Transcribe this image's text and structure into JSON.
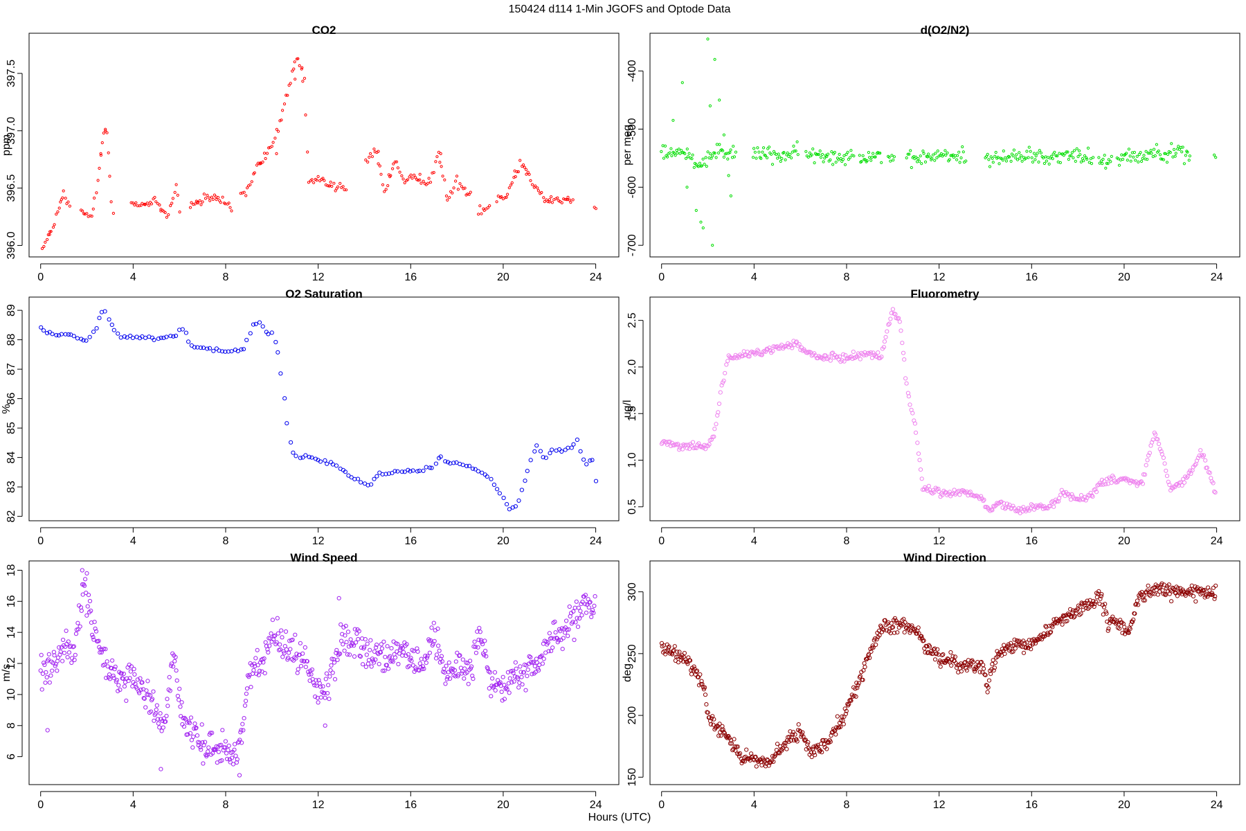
{
  "figure": {
    "title": "150424   d114   1-Min  JGOFS and Optode Data",
    "xlabel": "Hours (UTC)"
  },
  "chart_data": [
    {
      "type": "scatter",
      "title": "CO2",
      "ylabel": "ppm",
      "color": "#ff0000",
      "marker_radius": 1.6,
      "xlim": [
        -0.5,
        25.0
      ],
      "ylim": [
        395.9,
        397.85
      ],
      "xticks": [
        0,
        4,
        8,
        12,
        16,
        20,
        24
      ],
      "yticks": [
        396.0,
        396.5,
        397.0,
        397.5
      ],
      "yticklabels": [
        "396.0",
        "396.5",
        "397.0",
        "397.5"
      ],
      "noise": 0.04,
      "density": 4,
      "gaps": [
        [
          1.3,
          1.7
        ],
        [
          3.2,
          3.9
        ],
        [
          6.0,
          6.4
        ],
        [
          8.3,
          8.6
        ],
        [
          13.2,
          14.0
        ],
        [
          18.6,
          18.9
        ],
        [
          19.4,
          19.7
        ],
        [
          23.0,
          23.9
        ]
      ],
      "x": [
        0,
        0.3,
        0.6,
        1.0,
        1.3,
        1.8,
        2.2,
        2.5,
        2.7,
        2.85,
        3.1,
        3.2,
        3.9,
        4.3,
        5.0,
        5.5,
        5.9,
        6.0,
        6.4,
        7.5,
        8.2,
        8.3,
        8.6,
        9.0,
        9.4,
        9.8,
        10.0,
        10.5,
        10.9,
        11.1,
        11.4,
        11.6,
        12.0,
        13.0,
        13.2,
        14.0,
        14.5,
        14.9,
        15.3,
        15.7,
        16.2,
        16.8,
        17.2,
        17.6,
        18.0,
        18.6,
        18.9,
        19.4,
        19.7,
        20.2,
        20.7,
        21.0,
        21.3,
        21.8,
        22.5,
        23.0,
        23.9,
        24.0
      ],
      "y": [
        395.95,
        396.05,
        396.2,
        396.45,
        396.3,
        396.28,
        396.25,
        396.6,
        396.95,
        397.05,
        396.3,
        396.28,
        396.4,
        396.35,
        396.38,
        396.25,
        396.55,
        396.3,
        396.35,
        396.42,
        396.35,
        396.3,
        396.4,
        396.5,
        396.7,
        396.8,
        396.85,
        397.2,
        397.5,
        397.65,
        397.4,
        396.55,
        396.58,
        396.5,
        396.48,
        396.7,
        396.85,
        396.45,
        396.75,
        396.55,
        396.6,
        396.55,
        396.8,
        396.4,
        396.55,
        396.45,
        396.3,
        396.35,
        396.4,
        396.45,
        396.7,
        396.68,
        396.55,
        396.4,
        396.4,
        396.38,
        396.35,
        396.35
      ],
      "hl_x": [
        0.4,
        0.9,
        2.6,
        2.8,
        4.5,
        5.2,
        6.8,
        7.6,
        9.5,
        10.2,
        11.0,
        11.3,
        12.5,
        14.6,
        15.1,
        16.4,
        17.3,
        20.5,
        21.0,
        22.0,
        22.8
      ],
      "hl_y": [
        396.12,
        396.4,
        396.8,
        397.0,
        396.36,
        396.3,
        396.37,
        396.4,
        396.72,
        396.8,
        397.45,
        397.55,
        396.52,
        396.82,
        396.6,
        396.62,
        396.8,
        396.65,
        396.62,
        396.38,
        396.42
      ]
    },
    {
      "type": "scatter",
      "title": "d(O2/N2)",
      "ylabel": "per meg",
      "color": "#00dd00",
      "marker_radius": 1.6,
      "xlim": [
        -0.5,
        25.0
      ],
      "ylim": [
        -720,
        -335
      ],
      "xticks": [
        0,
        4,
        8,
        12,
        16,
        20,
        24
      ],
      "yticks": [
        -700,
        -600,
        -500,
        -400
      ],
      "yticklabels": [
        "-700",
        "-600",
        "-500",
        "-400"
      ],
      "noise": 12,
      "density": 3,
      "gaps": [
        [
          3.2,
          3.9
        ],
        [
          5.9,
          6.2
        ],
        [
          8.3,
          8.5
        ],
        [
          9.5,
          9.8
        ],
        [
          10.1,
          10.6
        ],
        [
          13.2,
          14.0
        ],
        [
          18.7,
          18.9
        ],
        [
          19.5,
          19.7
        ],
        [
          22.9,
          23.9
        ]
      ],
      "x": [
        0,
        0.8,
        1.2,
        1.6,
        2.0,
        2.4,
        2.8,
        3.2,
        3.9,
        5.0,
        5.9,
        6.2,
        7.5,
        8.3,
        8.5,
        9.5,
        9.8,
        10.1,
        10.6,
        11.5,
        13.2,
        14.0,
        15.0,
        16.0,
        17.0,
        18.0,
        18.7,
        18.9,
        19.5,
        19.7,
        20.5,
        21.5,
        22.4,
        22.9,
        23.9,
        24.0
      ],
      "y": [
        -540,
        -540,
        -545,
        -560,
        -550,
        -530,
        -545,
        -540,
        -540,
        -545,
        -540,
        -545,
        -548,
        -545,
        -545,
        -545,
        -545,
        -555,
        -555,
        -548,
        -545,
        -548,
        -550,
        -545,
        -548,
        -545,
        -550,
        -552,
        -552,
        -548,
        -545,
        -540,
        -540,
        -545,
        -550,
        -548
      ],
      "hl_x": [
        0.5,
        0.9,
        1.5,
        1.8,
        2.0,
        2.1,
        2.3,
        2.5,
        2.7,
        2.9,
        3.0,
        1.1,
        1.7,
        2.2
      ],
      "hl_y": [
        -485,
        -420,
        -640,
        -670,
        -345,
        -460,
        -380,
        -450,
        -510,
        -580,
        -615,
        -600,
        -660,
        -700
      ],
      "outlier_color": "#00dd00"
    },
    {
      "type": "scatter",
      "title": "O2 Saturation",
      "ylabel": "%",
      "color": "#0000ee",
      "marker_radius": 2.6,
      "xlim": [
        -0.5,
        25.0
      ],
      "ylim": [
        81.85,
        89.45
      ],
      "xticks": [
        0,
        4,
        8,
        12,
        16,
        20,
        24
      ],
      "yticks": [
        82,
        83,
        84,
        85,
        86,
        87,
        88,
        89
      ],
      "yticklabels": [
        "82",
        "83",
        "84",
        "85",
        "86",
        "87",
        "88",
        "89"
      ],
      "noise": 0.05,
      "density": 8,
      "gaps": [],
      "x": [
        0,
        0.3,
        0.8,
        1.2,
        1.7,
        2.0,
        2.4,
        2.7,
        3.0,
        3.4,
        3.8,
        4.2,
        5.0,
        5.8,
        6.1,
        6.5,
        7.0,
        7.6,
        8.2,
        8.8,
        9.2,
        9.5,
        9.8,
        10.0,
        10.3,
        10.6,
        10.8,
        11.0,
        11.3,
        12.0,
        12.5,
        13.0,
        13.5,
        14.0,
        14.3,
        14.6,
        14.9,
        15.5,
        16.0,
        16.5,
        17.0,
        17.3,
        17.5,
        18.0,
        18.5,
        19.0,
        19.5,
        20.0,
        20.3,
        20.6,
        21.0,
        21.3,
        21.5,
        21.8,
        22.2,
        22.6,
        23.0,
        23.2,
        23.5,
        23.9,
        24.0
      ],
      "y": [
        88.4,
        88.25,
        88.15,
        88.2,
        88.0,
        87.95,
        88.4,
        89.05,
        88.6,
        88.1,
        88.1,
        88.1,
        88.05,
        88.1,
        88.45,
        87.8,
        87.7,
        87.65,
        87.6,
        87.7,
        88.5,
        88.6,
        88.2,
        88.25,
        87.5,
        85.5,
        84.5,
        84.0,
        84.05,
        83.95,
        83.8,
        83.6,
        83.3,
        83.1,
        83.1,
        83.5,
        83.4,
        83.55,
        83.55,
        83.6,
        83.7,
        84.1,
        83.85,
        83.8,
        83.7,
        83.5,
        83.2,
        82.6,
        82.25,
        82.4,
        83.4,
        84.2,
        84.4,
        83.9,
        84.3,
        84.2,
        84.4,
        84.6,
        83.8,
        83.9,
        83.2
      ],
      "hl_x": [],
      "hl_y": []
    },
    {
      "type": "scatter",
      "title": "Fluorometry",
      "ylabel": "ug/l",
      "color": "#ee82ee",
      "marker_radius": 2.6,
      "xlim": [
        -0.5,
        25.0
      ],
      "ylim": [
        0.35,
        2.75
      ],
      "xticks": [
        0,
        4,
        8,
        12,
        16,
        20,
        24
      ],
      "yticks": [
        0.5,
        1.0,
        1.5,
        2.0,
        2.5
      ],
      "yticklabels": [
        "0.5",
        "1.0",
        "1.5",
        "2.0",
        "2.5"
      ],
      "noise": 0.035,
      "density": 3,
      "gaps": [],
      "x": [
        0,
        1.0,
        2.0,
        2.3,
        2.6,
        2.9,
        3.2,
        4.0,
        5.0,
        5.8,
        6.3,
        7.0,
        8.0,
        9.0,
        9.5,
        9.8,
        10.0,
        10.3,
        10.6,
        11.0,
        11.3,
        12.0,
        13.0,
        13.8,
        14.2,
        14.6,
        15.0,
        15.5,
        16.0,
        16.8,
        17.3,
        17.8,
        18.5,
        19.0,
        19.5,
        20.0,
        20.8,
        21.0,
        21.3,
        21.6,
        22.0,
        22.5,
        23.0,
        23.3,
        23.7,
        24.0
      ],
      "y": [
        1.2,
        1.15,
        1.15,
        1.3,
        1.8,
        2.1,
        2.1,
        2.15,
        2.2,
        2.25,
        2.15,
        2.1,
        2.1,
        2.15,
        2.1,
        2.45,
        2.6,
        2.5,
        1.8,
        1.3,
        0.7,
        0.65,
        0.65,
        0.6,
        0.45,
        0.55,
        0.5,
        0.45,
        0.5,
        0.5,
        0.65,
        0.6,
        0.6,
        0.75,
        0.8,
        0.8,
        0.75,
        1.0,
        1.3,
        1.1,
        0.7,
        0.75,
        0.9,
        1.1,
        0.85,
        0.6
      ],
      "hl_x": [],
      "hl_y": []
    },
    {
      "type": "scatter",
      "title": "Wind Speed",
      "ylabel": "m/s",
      "color": "#a020f0",
      "marker_radius": 2.6,
      "xlim": [
        -0.5,
        25.0
      ],
      "ylim": [
        4.2,
        18.6
      ],
      "xticks": [
        0,
        4,
        8,
        12,
        16,
        20,
        24
      ],
      "yticks": [
        6,
        8,
        10,
        12,
        14,
        16,
        18
      ],
      "yticklabels": [
        "6",
        "8",
        "10",
        "12",
        "14",
        "16",
        "18"
      ],
      "noise": 0.9,
      "density": 2,
      "gaps": [],
      "x": [
        0,
        0.5,
        1.0,
        1.5,
        1.9,
        2.0,
        2.3,
        2.8,
        3.2,
        4.0,
        4.8,
        5.3,
        5.8,
        6.0,
        6.5,
        7.0,
        8.0,
        8.5,
        9.0,
        9.5,
        10.0,
        10.8,
        11.5,
        12.0,
        12.5,
        13.0,
        13.5,
        14.5,
        15.5,
        16.5,
        17.0,
        17.5,
        18.0,
        18.5,
        19.0,
        19.5,
        20.0,
        20.5,
        21.0,
        21.5,
        22.0,
        22.5,
        23.0,
        23.5,
        24.0
      ],
      "y": [
        11.5,
        12.0,
        13.0,
        12.8,
        17.0,
        16.0,
        14.0,
        12.0,
        11.0,
        11.0,
        9.5,
        8.0,
        13.0,
        9.0,
        7.5,
        6.8,
        6.5,
        6.0,
        11.0,
        12.0,
        14.0,
        13.0,
        12.0,
        10.0,
        11.0,
        13.5,
        13.5,
        12.5,
        12.5,
        11.8,
        14.0,
        11.0,
        12.0,
        11.5,
        14.0,
        10.5,
        10.5,
        11.0,
        11.5,
        12.0,
        13.5,
        14.0,
        14.5,
        15.5,
        15.5
      ],
      "hl_x": [
        0.3,
        1.8,
        2.0,
        5.2,
        8.6,
        12.3,
        12.9
      ],
      "hl_y": [
        7.7,
        18.0,
        17.8,
        5.2,
        4.8,
        8.0,
        16.2
      ],
      "outlier_color": "#a020f0"
    },
    {
      "type": "scatter",
      "title": "Wind Direction",
      "ylabel": "deg",
      "color": "#8b0000",
      "marker_radius": 2.6,
      "xlim": [
        -0.5,
        25.0
      ],
      "ylim": [
        144,
        325
      ],
      "xticks": [
        0,
        4,
        8,
        12,
        16,
        20,
        24
      ],
      "yticks": [
        150,
        200,
        250,
        300
      ],
      "yticklabels": [
        "150",
        "200",
        "250",
        "300"
      ],
      "noise": 5,
      "density": 2,
      "gaps": [],
      "x": [
        0,
        0.5,
        1.0,
        1.5,
        1.9,
        2.0,
        2.5,
        3.0,
        3.5,
        4.0,
        4.5,
        5.0,
        5.5,
        6.0,
        6.5,
        7.0,
        7.5,
        8.0,
        8.5,
        9.0,
        9.5,
        10.0,
        10.5,
        11.0,
        11.5,
        12.0,
        12.5,
        13.0,
        13.5,
        13.9,
        14.1,
        14.3,
        14.6,
        15.0,
        15.5,
        16.0,
        16.5,
        17.0,
        17.5,
        18.0,
        18.5,
        19.0,
        19.3,
        19.6,
        20.0,
        20.3,
        20.6,
        21.0,
        21.5,
        22.0,
        22.5,
        23.0,
        23.5,
        24.0
      ],
      "y": [
        255,
        250,
        245,
        235,
        220,
        200,
        190,
        180,
        165,
        165,
        160,
        170,
        180,
        185,
        170,
        175,
        190,
        205,
        225,
        250,
        270,
        272,
        272,
        270,
        255,
        245,
        245,
        240,
        240,
        238,
        222,
        240,
        248,
        255,
        255,
        258,
        265,
        275,
        280,
        285,
        290,
        295,
        275,
        275,
        270,
        270,
        295,
        300,
        302,
        300,
        300,
        300,
        298,
        300
      ],
      "hl_x": [],
      "hl_y": []
    }
  ]
}
